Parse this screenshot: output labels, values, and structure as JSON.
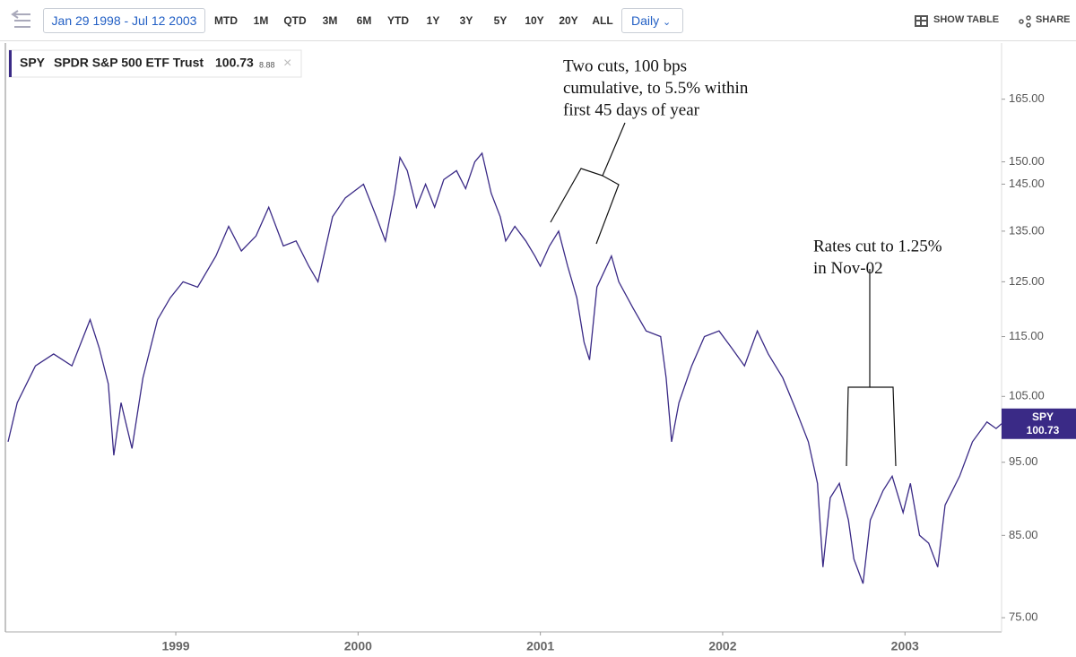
{
  "toolbar": {
    "date_range": "Jan 29 1998 - Jul 12 2003",
    "ranges": [
      "MTD",
      "1M",
      "QTD",
      "3M",
      "6M",
      "YTD",
      "1Y",
      "3Y",
      "5Y",
      "10Y",
      "20Y",
      "ALL"
    ],
    "interval": "Daily",
    "show_table": "SHOW TABLE",
    "share": "SHARE"
  },
  "legend": {
    "description": "SPDR S&P 500 ETF Trust",
    "change": 8.88
  },
  "chart_data": {
    "type": "line",
    "x": [
      1998.08,
      1998.13,
      1998.23,
      1998.33,
      1998.43,
      1998.53,
      1998.58,
      1998.63,
      1998.66,
      1998.7,
      1998.76,
      1998.82,
      1998.9,
      1998.97,
      1999.04,
      1999.12,
      1999.22,
      1999.29,
      1999.36,
      1999.44,
      1999.51,
      1999.59,
      1999.66,
      1999.73,
      1999.78,
      1999.86,
      1999.93,
      2000.03,
      2000.1,
      2000.15,
      2000.2,
      2000.23,
      2000.27,
      2000.32,
      2000.37,
      2000.42,
      2000.47,
      2000.54,
      2000.59,
      2000.64,
      2000.68,
      2000.73,
      2000.78,
      2000.81,
      2000.86,
      2000.92,
      2000.97,
      2001.0,
      2001.05,
      2001.1,
      2001.15,
      2001.2,
      2001.24,
      2001.27,
      2001.31,
      2001.39,
      2001.43,
      2001.51,
      2001.58,
      2001.66,
      2001.69,
      2001.72,
      2001.76,
      2001.83,
      2001.9,
      2001.98,
      2002.05,
      2002.12,
      2002.19,
      2002.25,
      2002.33,
      2002.4,
      2002.47,
      2002.52,
      2002.55,
      2002.59,
      2002.64,
      2002.69,
      2002.72,
      2002.77,
      2002.81,
      2002.88,
      2002.93,
      2002.99,
      2003.03,
      2003.08,
      2003.13,
      2003.18,
      2003.22,
      2003.3,
      2003.37,
      2003.45,
      2003.5,
      2003.53
    ],
    "series": [
      {
        "name": "SPY",
        "color": "#3a2a86",
        "values": [
          98,
          104,
          110,
          112,
          110,
          118,
          113,
          107,
          96,
          104,
          97,
          108,
          118,
          122,
          125,
          124,
          130,
          136,
          131,
          134,
          140,
          132,
          133,
          128,
          125,
          138,
          142,
          145,
          138,
          133,
          143,
          151,
          148,
          140,
          145,
          140,
          146,
          148,
          144,
          150,
          152,
          143,
          138,
          133,
          136,
          133,
          130,
          128,
          132,
          135,
          128,
          122,
          114,
          111,
          124,
          130,
          125,
          120,
          116,
          115,
          108,
          98,
          104,
          110,
          115,
          116,
          113,
          110,
          116,
          112,
          108,
          103,
          98,
          92,
          81,
          90,
          92,
          87,
          82,
          79,
          87,
          91,
          93,
          88,
          92,
          85,
          84,
          81,
          89,
          93,
          98,
          101,
          100,
          100.73
        ]
      }
    ],
    "xlim": [
      1998.08,
      2003.53
    ],
    "xticks": [
      1999,
      2000,
      2001,
      2002,
      2003
    ],
    "ylim": [
      73.4,
      178
    ],
    "log_scale": true,
    "grid": false,
    "yticks": [
      {
        "value": 75,
        "label": "75.00"
      },
      {
        "value": 85,
        "label": "85.00"
      },
      {
        "value": 95,
        "label": "95.00"
      },
      {
        "value": 105,
        "label": "105.00"
      },
      {
        "value": 115,
        "label": "115.00"
      },
      {
        "value": 125,
        "label": "125.00"
      },
      {
        "value": 135,
        "label": "135.00"
      },
      {
        "value": 145,
        "label": "145.00"
      },
      {
        "value": 150,
        "label": "150.00"
      },
      {
        "value": 165,
        "label": "165.00"
      }
    ],
    "annotations": [
      {
        "lines": [
          "Two cuts, 100 bps",
          "cumulative, to 5.5% within",
          "first 45 days of year"
        ]
      },
      {
        "lines": [
          "Rates cut to 1.25%",
          "in Nov-02"
        ]
      }
    ]
  }
}
